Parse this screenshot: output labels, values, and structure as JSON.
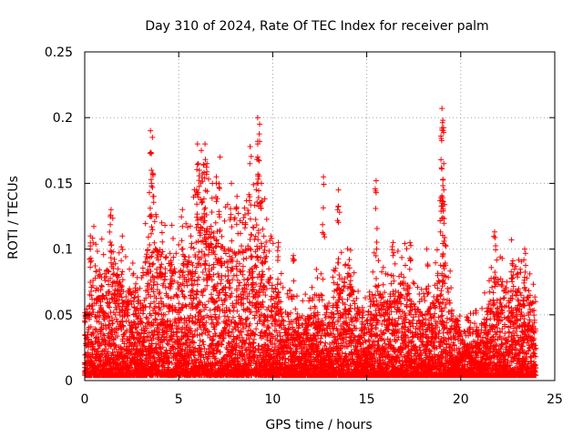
{
  "chart_data": {
    "type": "scatter",
    "title": "Day 310 of 2024, Rate Of TEC Index for receiver palm",
    "xlabel": "GPS time / hours",
    "ylabel": "ROTI / TECUs",
    "xlim": [
      0,
      25
    ],
    "ylim": [
      0,
      0.25
    ],
    "x_ticks": [
      "0",
      "5",
      "10",
      "15",
      "20",
      "25"
    ],
    "y_ticks": [
      "0",
      "0.05",
      "0.1",
      "0.15",
      "0.2",
      "0.25"
    ],
    "grid": true,
    "marker": "+",
    "series_color": "#ff0000",
    "series": [
      {
        "name": "ROTI",
        "sampling_interval_hours": 0.00833,
        "x_range_hours": [
          0,
          24
        ],
        "envelope": {
          "x": [
            0,
            0.5,
            1,
            1.5,
            2,
            2.5,
            3,
            3.5,
            4,
            4.5,
            5,
            5.5,
            6,
            6.5,
            7,
            7.5,
            8,
            8.5,
            9,
            9.5,
            10,
            10.5,
            11,
            11.5,
            12,
            12.5,
            13,
            13.5,
            14,
            14.5,
            15,
            15.5,
            16,
            16.5,
            17,
            17.5,
            18,
            18.5,
            19,
            19.5,
            20,
            20.5,
            21,
            21.5,
            22,
            22.5,
            23,
            23.5,
            24
          ],
          "typical_max": [
            0.05,
            0.09,
            0.08,
            0.1,
            0.07,
            0.07,
            0.08,
            0.11,
            0.1,
            0.09,
            0.09,
            0.1,
            0.13,
            0.12,
            0.11,
            0.1,
            0.1,
            0.1,
            0.12,
            0.11,
            0.08,
            0.06,
            0.05,
            0.05,
            0.05,
            0.07,
            0.05,
            0.08,
            0.09,
            0.06,
            0.05,
            0.08,
            0.06,
            0.07,
            0.08,
            0.06,
            0.05,
            0.06,
            0.1,
            0.06,
            0.04,
            0.04,
            0.04,
            0.06,
            0.08,
            0.07,
            0.07,
            0.07,
            0.06
          ],
          "baseline": [
            0.01,
            0.015,
            0.015,
            0.015,
            0.015,
            0.015,
            0.015,
            0.02,
            0.02,
            0.02,
            0.02,
            0.02,
            0.02,
            0.02,
            0.02,
            0.02,
            0.02,
            0.02,
            0.02,
            0.02,
            0.015,
            0.015,
            0.01,
            0.01,
            0.01,
            0.01,
            0.01,
            0.01,
            0.01,
            0.01,
            0.01,
            0.01,
            0.01,
            0.01,
            0.01,
            0.01,
            0.01,
            0.01,
            0.01,
            0.01,
            0.01,
            0.01,
            0.01,
            0.01,
            0.01,
            0.01,
            0.01,
            0.01,
            0.01
          ]
        },
        "spikes": [
          {
            "x": 0.3,
            "y": 0.11
          },
          {
            "x": 1.4,
            "y": 0.13
          },
          {
            "x": 3.5,
            "y": 0.19
          },
          {
            "x": 3.6,
            "y": 0.185
          },
          {
            "x": 3.55,
            "y": 0.16
          },
          {
            "x": 6.0,
            "y": 0.18
          },
          {
            "x": 6.2,
            "y": 0.175
          },
          {
            "x": 6.4,
            "y": 0.18
          },
          {
            "x": 6.1,
            "y": 0.16
          },
          {
            "x": 6.5,
            "y": 0.165
          },
          {
            "x": 7.2,
            "y": 0.17
          },
          {
            "x": 7.0,
            "y": 0.155
          },
          {
            "x": 9.2,
            "y": 0.2
          },
          {
            "x": 9.3,
            "y": 0.195
          },
          {
            "x": 9.2,
            "y": 0.18
          },
          {
            "x": 8.8,
            "y": 0.178
          },
          {
            "x": 9.4,
            "y": 0.15
          },
          {
            "x": 12.7,
            "y": 0.155
          },
          {
            "x": 13.5,
            "y": 0.145
          },
          {
            "x": 15.5,
            "y": 0.152
          },
          {
            "x": 19.0,
            "y": 0.207
          },
          {
            "x": 19.05,
            "y": 0.198
          },
          {
            "x": 19.0,
            "y": 0.192
          },
          {
            "x": 18.95,
            "y": 0.168
          },
          {
            "x": 19.1,
            "y": 0.165
          },
          {
            "x": 19.1,
            "y": 0.145
          },
          {
            "x": 21.8,
            "y": 0.113
          },
          {
            "x": 22.7,
            "y": 0.107
          },
          {
            "x": 23.4,
            "y": 0.1
          },
          {
            "x": 2.0,
            "y": 0.11
          },
          {
            "x": 4.1,
            "y": 0.12
          },
          {
            "x": 5.2,
            "y": 0.13
          },
          {
            "x": 7.8,
            "y": 0.15
          },
          {
            "x": 8.1,
            "y": 0.14
          },
          {
            "x": 10.3,
            "y": 0.105
          },
          {
            "x": 11.1,
            "y": 0.095
          },
          {
            "x": 16.4,
            "y": 0.105
          },
          {
            "x": 17.3,
            "y": 0.105
          },
          {
            "x": 18.2,
            "y": 0.1
          }
        ]
      }
    ]
  }
}
